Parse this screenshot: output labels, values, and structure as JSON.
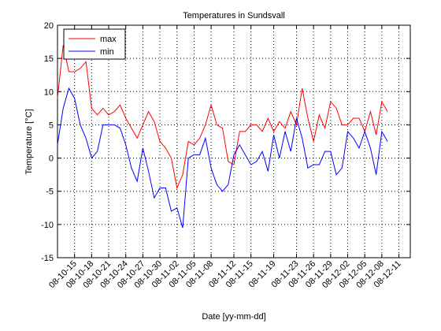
{
  "chart_data": {
    "type": "line",
    "title": "Temperatures in Sundsvall",
    "xlabel": "Date [yy-mm-dd]",
    "ylabel": "Temperature [°C]",
    "x": [
      "08-10-12",
      "08-10-13",
      "08-10-14",
      "08-10-15",
      "08-10-16",
      "08-10-17",
      "08-10-18",
      "08-10-19",
      "08-10-20",
      "08-10-21",
      "08-10-22",
      "08-10-23",
      "08-10-24",
      "08-10-25",
      "08-10-26",
      "08-10-27",
      "08-10-28",
      "08-10-29",
      "08-10-30",
      "08-10-31",
      "08-11-01",
      "08-11-02",
      "08-11-03",
      "08-11-04",
      "08-11-05",
      "08-11-06",
      "08-11-07",
      "08-11-08",
      "08-11-09",
      "08-11-10",
      "08-11-11",
      "08-11-12",
      "08-11-13",
      "08-11-14",
      "08-11-15",
      "08-11-16",
      "08-11-17",
      "08-11-18",
      "08-11-19",
      "08-11-20",
      "08-11-21",
      "08-11-22",
      "08-11-23",
      "08-11-24",
      "08-11-25",
      "08-11-26",
      "08-11-27",
      "08-11-28",
      "08-11-29",
      "08-11-30",
      "08-12-01",
      "08-12-02",
      "08-12-03",
      "08-12-04",
      "08-12-05",
      "08-12-06",
      "08-12-07",
      "08-12-08",
      "08-12-09"
    ],
    "series": [
      {
        "name": "max",
        "color": "#ff0000",
        "values": [
          9,
          17,
          13,
          13,
          13.5,
          14.5,
          7.5,
          6.5,
          7.5,
          6.5,
          7,
          8,
          6,
          4.5,
          3,
          5,
          7,
          5.5,
          2.5,
          1.5,
          0,
          -4.5,
          -2.5,
          2.5,
          2,
          3,
          5,
          8,
          5,
          4.5,
          -0.5,
          -1,
          4,
          4,
          5,
          5,
          4,
          6,
          4,
          5.5,
          4.5,
          7,
          5,
          10.5,
          6,
          2.5,
          6.5,
          4.5,
          8.5,
          7.5,
          5,
          5,
          6,
          6,
          4,
          7,
          3.5,
          8.5,
          7
        ]
      },
      {
        "name": "min",
        "color": "#0000ff",
        "values": [
          2,
          7.5,
          10.5,
          9,
          5,
          3,
          0,
          1,
          5,
          5,
          5,
          4.5,
          2,
          -1.5,
          -3.5,
          1.5,
          -2,
          -6,
          -4.5,
          -4.5,
          -8,
          -7.5,
          -10.5,
          0,
          0.5,
          0.5,
          3,
          -1.5,
          -4,
          -5,
          -4,
          0.5,
          2,
          0.5,
          -1,
          -0.5,
          1,
          -2,
          3.5,
          0,
          4,
          1,
          6,
          3,
          -1.5,
          -1,
          -1,
          1,
          1,
          -2.5,
          -1.5,
          4,
          3,
          1.5,
          4,
          1.5,
          -2.5,
          4,
          2.5
        ]
      }
    ],
    "xlim": [
      "08-10-12",
      "08-12-13"
    ],
    "xticks": [
      "08-10-15",
      "08-10-18",
      "08-10-21",
      "08-10-24",
      "08-10-27",
      "08-10-30",
      "08-11-02",
      "08-11-05",
      "08-11-08",
      "08-11-12",
      "08-11-15",
      "08-11-19",
      "08-11-23",
      "08-11-26",
      "08-11-29",
      "08-12-02",
      "08-12-05",
      "08-12-08",
      "08-12-11"
    ],
    "ylim": [
      -15,
      20
    ],
    "yticks": [
      -15,
      -10,
      -5,
      0,
      5,
      10,
      15,
      20
    ],
    "grid": true,
    "legend": "top-left"
  }
}
